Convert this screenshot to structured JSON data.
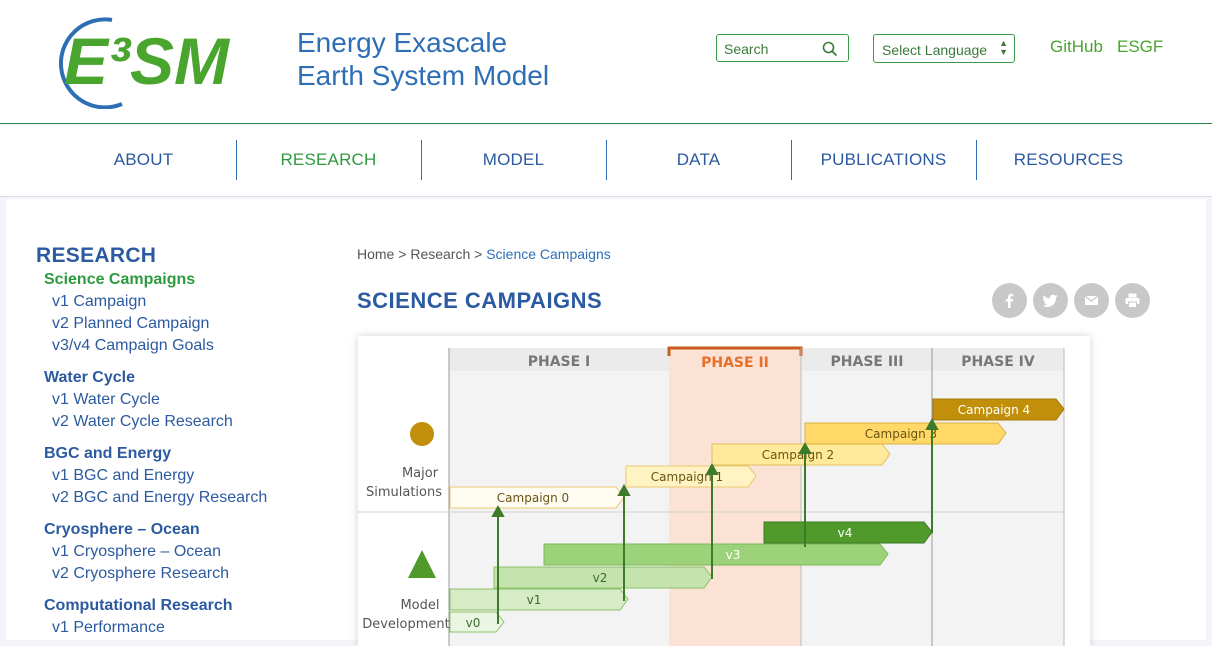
{
  "header": {
    "logo_text": "E³SM",
    "title_line1": "Energy Exascale",
    "title_line2": "Earth System Model",
    "search_placeholder": "Search",
    "language_label": "Select Language",
    "links": [
      "GitHub",
      "ESGF"
    ]
  },
  "nav": {
    "items": [
      "ABOUT",
      "RESEARCH",
      "MODEL",
      "DATA",
      "PUBLICATIONS",
      "RESOURCES"
    ],
    "active": "RESEARCH"
  },
  "sidebar": {
    "title": "RESEARCH",
    "sections": [
      {
        "heading": "Science Campaigns",
        "current": true,
        "items": [
          "v1 Campaign",
          "v2 Planned Campaign",
          "v3/v4 Campaign Goals"
        ]
      },
      {
        "heading": "Water Cycle",
        "items": [
          "v1 Water Cycle",
          "v2 Water Cycle Research"
        ]
      },
      {
        "heading": "BGC and Energy",
        "items": [
          "v1 BGC and Energy",
          "v2 BGC and Energy Research"
        ]
      },
      {
        "heading": "Cryosphere – Ocean",
        "items": [
          "v1 Cryosphere – Ocean",
          "v2 Cryosphere Research"
        ]
      },
      {
        "heading": "Computational Research",
        "items": [
          "v1 Performance"
        ]
      }
    ]
  },
  "breadcrumb": {
    "home": "Home",
    "sep": ">",
    "research": "Research",
    "current": "Science Campaigns"
  },
  "page": {
    "title": "SCIENCE CAMPAIGNS"
  },
  "share_icons": [
    "facebook-icon",
    "twitter-icon",
    "email-icon",
    "print-icon"
  ],
  "figure": {
    "phases": [
      "PHASE I",
      "PHASE II",
      "PHASE III",
      "PHASE IV"
    ],
    "highlight_phase": "PHASE II",
    "row_labels": {
      "major_line1": "Major",
      "major_line2": "Simulations",
      "model_line1": "Model",
      "model_line2": "Development"
    },
    "campaigns": [
      "Campaign 0",
      "Campaign 1",
      "Campaign 2",
      "Campaign 3",
      "Campaign 4"
    ],
    "versions": [
      "v0",
      "v1",
      "v2",
      "v3",
      "v4"
    ],
    "colors": {
      "phase2_fill": "#fbe2d4",
      "phase2_text": "#e8702a",
      "campaign_dark": "#c28f0a",
      "version_dark": "#4f9a2a",
      "arrow": "#3d7a2a"
    }
  }
}
